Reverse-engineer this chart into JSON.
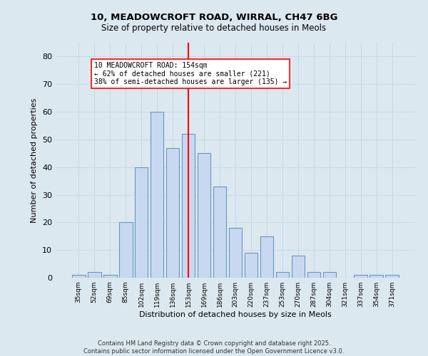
{
  "title1": "10, MEADOWCROFT ROAD, WIRRAL, CH47 6BG",
  "title2": "Size of property relative to detached houses in Meols",
  "xlabel": "Distribution of detached houses by size in Meols",
  "ylabel": "Number of detached properties",
  "categories": [
    "35sqm",
    "52sqm",
    "69sqm",
    "85sqm",
    "102sqm",
    "119sqm",
    "136sqm",
    "153sqm",
    "169sqm",
    "186sqm",
    "203sqm",
    "220sqm",
    "237sqm",
    "253sqm",
    "270sqm",
    "287sqm",
    "304sqm",
    "321sqm",
    "337sqm",
    "354sqm",
    "371sqm"
  ],
  "values": [
    1,
    2,
    1,
    20,
    40,
    60,
    47,
    52,
    45,
    33,
    18,
    9,
    15,
    2,
    8,
    2,
    2,
    0,
    1,
    1,
    1
  ],
  "bar_color": "#c8d8f0",
  "bar_edge_color": "#6699bb",
  "ref_line_idx": 7,
  "ref_line_label": "10 MEADOWCROFT ROAD: 154sqm",
  "pct_smaller": "62% of detached houses are smaller (221)",
  "pct_larger": "38% of semi-detached houses are larger (135)",
  "ylim": [
    0,
    85
  ],
  "yticks": [
    0,
    10,
    20,
    30,
    40,
    50,
    60,
    70,
    80
  ],
  "grid_color": "#c8d8e8",
  "bg_color": "#dce8f0",
  "footer1": "Contains HM Land Registry data © Crown copyright and database right 2025.",
  "footer2": "Contains public sector information licensed under the Open Government Licence v3.0."
}
